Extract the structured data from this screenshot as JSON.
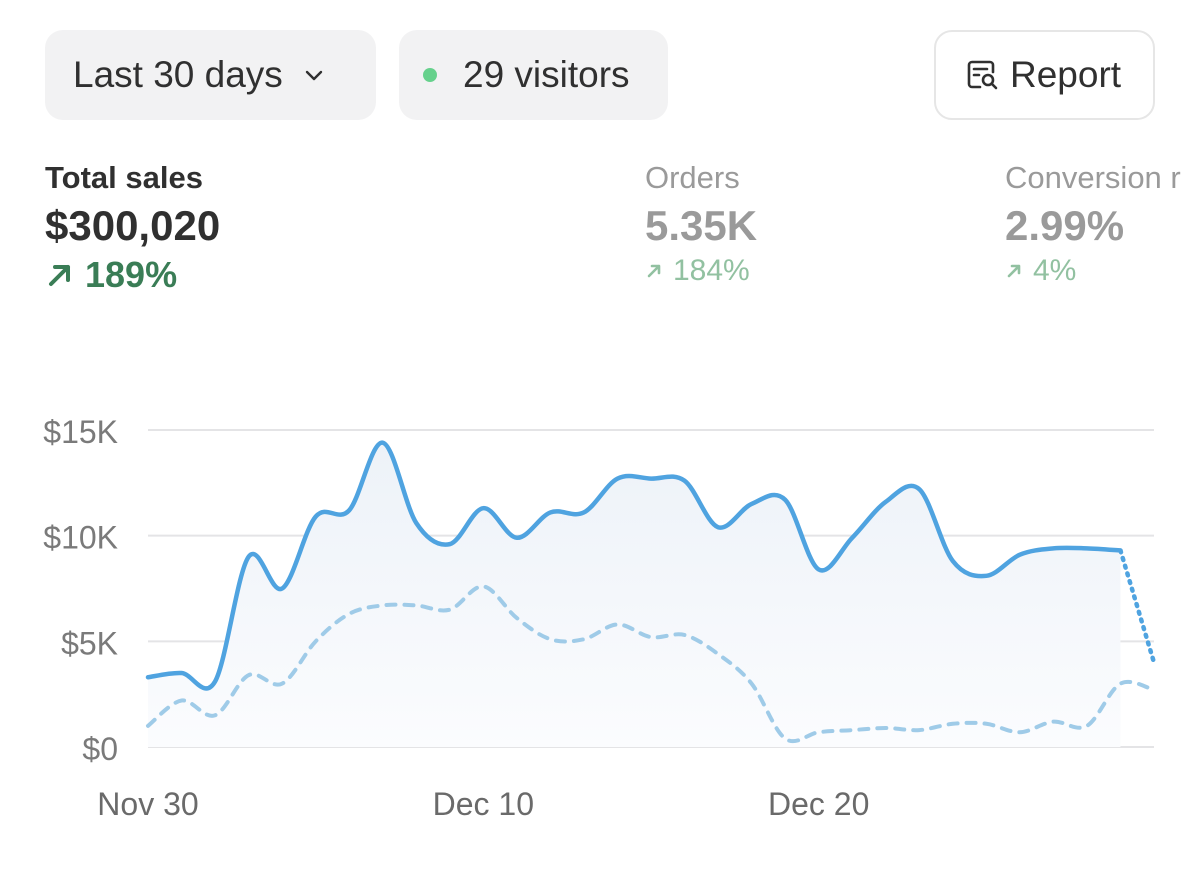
{
  "filters": {
    "date_range_label": "Last 30 days",
    "visitors_label": "29 visitors",
    "report_label": "Report"
  },
  "metrics": {
    "total_sales": {
      "label": "Total sales",
      "value": "$300,020",
      "change": "189%"
    },
    "orders": {
      "label": "Orders",
      "value": "5.35K",
      "change": "184%"
    },
    "conversion": {
      "label": "Conversion r",
      "value": "2.99%",
      "change": "4%"
    }
  },
  "icons": {
    "chevron": "chevron-down-icon",
    "status_dot": "online-dot-icon",
    "report": "report-search-icon",
    "trend": "arrow-up-right-icon"
  },
  "colors": {
    "current_line": "#4fa3e0",
    "previous_line": "#9fcbe8",
    "positive": "#3a7d56",
    "positive_muted": "#92c1a1",
    "visitors_dot": "#66d18c"
  },
  "chart_data": {
    "type": "line",
    "title": "",
    "xlabel": "",
    "ylabel": "",
    "x": [
      "Nov 30",
      "Dec 1",
      "Dec 2",
      "Dec 3",
      "Dec 4",
      "Dec 5",
      "Dec 6",
      "Dec 7",
      "Dec 8",
      "Dec 9",
      "Dec 10",
      "Dec 11",
      "Dec 12",
      "Dec 13",
      "Dec 14",
      "Dec 15",
      "Dec 16",
      "Dec 17",
      "Dec 18",
      "Dec 19",
      "Dec 20",
      "Dec 21",
      "Dec 22",
      "Dec 23",
      "Dec 24",
      "Dec 25",
      "Dec 26",
      "Dec 27",
      "Dec 28",
      "Dec 29",
      "Dec 30"
    ],
    "x_tick_labels": [
      "Nov 30",
      "Dec 10",
      "Dec 20"
    ],
    "y_tick_labels": [
      "$0",
      "$5K",
      "$10K",
      "$15K"
    ],
    "y_ticks": [
      0,
      5000,
      10000,
      15000
    ],
    "ylim": [
      0,
      15000
    ],
    "grid": true,
    "series": [
      {
        "style": "solid",
        "values": [
          3300,
          3500,
          3100,
          9000,
          7500,
          10900,
          11200,
          14400,
          10600,
          9600,
          11300,
          9900,
          11100,
          11100,
          12700,
          12700,
          12600,
          10400,
          11500,
          11700,
          8400,
          9900,
          11600,
          12200,
          8800,
          8100,
          9100,
          9400,
          9400,
          9300,
          4000
        ],
        "dotted_from_index": 29
      },
      {
        "style": "dashed",
        "values": [
          1000,
          2200,
          1500,
          3400,
          3000,
          5000,
          6300,
          6700,
          6700,
          6500,
          7600,
          6100,
          5100,
          5100,
          5800,
          5200,
          5300,
          4400,
          3000,
          400,
          700,
          800,
          900,
          800,
          1100,
          1100,
          700,
          1200,
          1000,
          3000,
          2700
        ]
      }
    ]
  }
}
